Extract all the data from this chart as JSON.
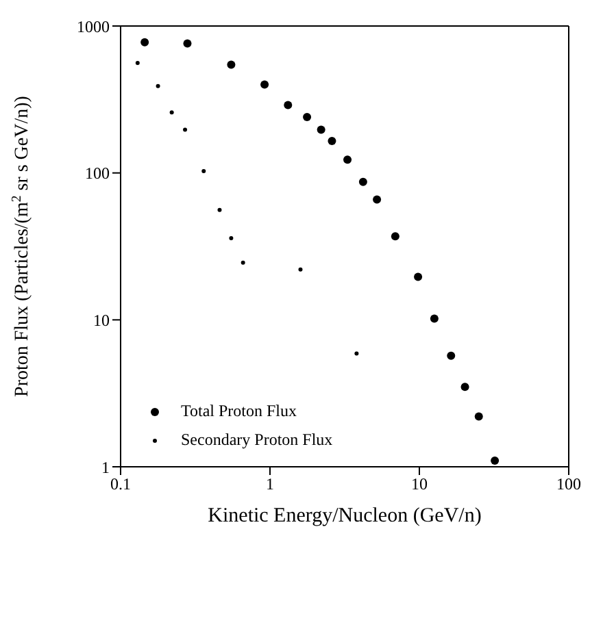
{
  "chart_data": {
    "type": "scatter",
    "xlabel": "Kinetic Energy/Nucleon (GeV/n)",
    "ylabel": "Proton Flux (Particles/(m$^{2}$ sr s GeV/n))",
    "log": "xy",
    "xlim": [
      0.1,
      100
    ],
    "xticks": [
      0.1,
      1,
      10,
      100
    ],
    "ylim": [
      1,
      1000
    ],
    "yticks": [
      1,
      10,
      100,
      1000
    ],
    "grid": false,
    "legend": "bottom left",
    "marker": "circle",
    "series": [
      {
        "name": "Total Proton Flux",
        "color": "#000000",
        "x": [
          0.145,
          0.28,
          0.55,
          0.92,
          1.32,
          1.77,
          2.2,
          2.6,
          3.3,
          4.2,
          5.2,
          6.9,
          9.8,
          12.6,
          16.3,
          20.2,
          25,
          32
        ],
        "values": [
          775,
          760,
          545,
          400,
          290,
          240,
          197,
          165,
          123,
          87,
          66,
          37,
          19.6,
          10.2,
          5.7,
          3.5,
          2.2,
          1.1
        ]
      },
      {
        "name": "Secondary Proton Flux",
        "color": "#000000",
        "x": [
          0.13,
          0.178,
          0.22,
          0.27,
          0.36,
          0.46,
          0.55,
          0.66,
          1.6,
          3.8
        ],
        "values": [
          560,
          390,
          258,
          197,
          103,
          56,
          36,
          24.5,
          22,
          5.9
        ]
      }
    ]
  }
}
